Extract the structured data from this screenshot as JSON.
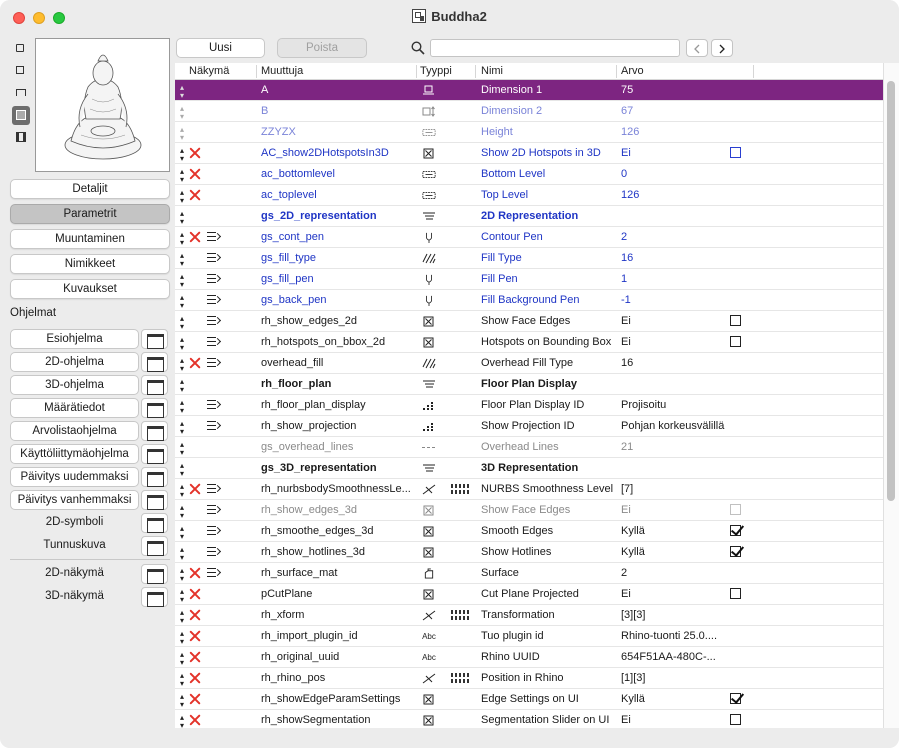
{
  "window": {
    "title": "Buddha2"
  },
  "sidebar": {
    "buttons": [
      "Detaljit",
      "Parametrit",
      "Muuntaminen",
      "Nimikkeet",
      "Kuvaukset"
    ],
    "selected": "Parametrit",
    "section_label": "Ohjelmat",
    "programs": [
      "Esiohjelma",
      "2D-ohjelma",
      "3D-ohjelma",
      "Määrätiedot",
      "Arvolistaohjelma",
      "Käyttöliittymäohjelma",
      "Päivitys uudemmaksi",
      "Päivitys vanhemmaksi"
    ],
    "plain_items": [
      "2D-symboli",
      "Tunnuskuva"
    ],
    "views": [
      "2D-näkymä",
      "3D-näkymä"
    ]
  },
  "toolbar": {
    "new_label": "Uusi",
    "delete_label": "Poista",
    "search_value": ""
  },
  "table": {
    "headers": {
      "view": "Näkymä",
      "variable": "Muuttuja",
      "type": "Tyyppi",
      "name": "Nimi",
      "value": "Arvo"
    },
    "rows": [
      {
        "var": "A",
        "type": "dim-v",
        "name": "Dimension 1",
        "value": "75",
        "sort": "dim",
        "x": false,
        "link": false,
        "check": "",
        "style": "selected"
      },
      {
        "var": "B",
        "type": "dim-h",
        "name": "Dimension 2",
        "value": "67",
        "sort": "dim",
        "x": false,
        "link": false,
        "check": "",
        "style": "lightblue"
      },
      {
        "var": "ZZYZX",
        "type": "dim-box",
        "name": "Height",
        "value": "126",
        "sort": "dim",
        "x": false,
        "link": false,
        "check": "",
        "style": "lightblue"
      },
      {
        "var": "AC_show2DHotspotsIn3D",
        "type": "bool",
        "name": "Show 2D Hotspots in 3D",
        "value": "Ei",
        "sort": "full",
        "x": true,
        "link": false,
        "check": "off-blue",
        "style": "blue"
      },
      {
        "var": "ac_bottomlevel",
        "type": "dim-box",
        "name": "Bottom Level",
        "value": "0",
        "sort": "full",
        "x": true,
        "link": false,
        "check": "",
        "style": "blue"
      },
      {
        "var": "ac_toplevel",
        "type": "dim-box",
        "name": "Top Level",
        "value": "126",
        "sort": "full",
        "x": true,
        "link": false,
        "check": "",
        "style": "blue"
      },
      {
        "var": "gs_2D_representation",
        "type": "title",
        "name": "2D Representation",
        "value": "",
        "sort": "full",
        "x": false,
        "link": false,
        "check": "",
        "style": "blue-bold"
      },
      {
        "var": "gs_cont_pen",
        "type": "pen",
        "name": "Contour Pen",
        "value": "2",
        "sort": "full",
        "x": true,
        "link": true,
        "check": "",
        "style": "blue"
      },
      {
        "var": "gs_fill_type",
        "type": "fill",
        "name": "Fill Type",
        "value": "16",
        "sort": "full",
        "x": false,
        "link": true,
        "check": "",
        "style": "blue"
      },
      {
        "var": "gs_fill_pen",
        "type": "pen",
        "name": "Fill Pen",
        "value": "1",
        "sort": "full",
        "x": false,
        "link": true,
        "check": "",
        "style": "blue"
      },
      {
        "var": "gs_back_pen",
        "type": "pen",
        "name": "Fill Background Pen",
        "value": "-1",
        "sort": "full",
        "x": false,
        "link": true,
        "check": "",
        "style": "blue"
      },
      {
        "var": "rh_show_edges_2d",
        "type": "bool",
        "name": "Show Face Edges",
        "value": "Ei",
        "sort": "full",
        "x": false,
        "link": true,
        "check": "off",
        "style": "normal"
      },
      {
        "var": "rh_hotspots_on_bbox_2d",
        "type": "bool",
        "name": "Hotspots on Bounding Box",
        "value": "Ei",
        "sort": "full",
        "x": false,
        "link": true,
        "check": "off",
        "style": "normal"
      },
      {
        "var": "overhead_fill",
        "type": "fill",
        "name": "Overhead Fill Type",
        "value": "16",
        "sort": "full",
        "x": true,
        "link": true,
        "check": "",
        "style": "normal"
      },
      {
        "var": "rh_floor_plan",
        "type": "title",
        "name": "Floor Plan Display",
        "value": "",
        "sort": "full",
        "x": false,
        "link": false,
        "check": "",
        "style": "bold"
      },
      {
        "var": "rh_floor_plan_display",
        "type": "int",
        "name": "Floor Plan Display ID",
        "value": "Projisoitu",
        "sort": "full",
        "x": false,
        "link": true,
        "check": "",
        "style": "normal"
      },
      {
        "var": "rh_show_projection",
        "type": "int",
        "name": "Show Projection ID",
        "value": "Pohjan korkeusvälillä",
        "sort": "full",
        "x": false,
        "link": true,
        "check": "",
        "style": "normal"
      },
      {
        "var": "gs_overhead_lines",
        "type": "line",
        "name": "Overhead Lines",
        "value": "21",
        "sort": "full",
        "x": false,
        "link": false,
        "check": "",
        "style": "gray"
      },
      {
        "var": "gs_3D_representation",
        "type": "title",
        "name": "3D Representation",
        "value": "",
        "sort": "full",
        "x": false,
        "link": false,
        "check": "",
        "style": "bold"
      },
      {
        "var": "rh_nurbsbodySmoothnessLe...",
        "type": "real",
        "name": "NURBS Smoothness Level",
        "value": "[7]",
        "sort": "full",
        "x": true,
        "link": true,
        "check": "",
        "arr": true,
        "style": "normal"
      },
      {
        "var": "rh_show_edges_3d",
        "type": "bool",
        "name": "Show Face Edges",
        "value": "Ei",
        "sort": "full",
        "x": false,
        "link": true,
        "check": "dis",
        "style": "gray"
      },
      {
        "var": "rh_smoothe_edges_3d",
        "type": "bool",
        "name": "Smooth Edges",
        "value": "Kyllä",
        "sort": "full",
        "x": false,
        "link": true,
        "check": "on",
        "style": "normal"
      },
      {
        "var": "rh_show_hotlines_3d",
        "type": "bool",
        "name": "Show Hotlines",
        "value": "Kyllä",
        "sort": "full",
        "x": false,
        "link": true,
        "check": "on",
        "style": "normal"
      },
      {
        "var": "rh_surface_mat",
        "type": "mat",
        "name": "Surface",
        "value": "2",
        "sort": "full",
        "x": true,
        "link": true,
        "check": "",
        "style": "normal"
      },
      {
        "var": "pCutPlane",
        "type": "bool",
        "name": "Cut Plane Projected",
        "value": "Ei",
        "sort": "full",
        "x": true,
        "link": false,
        "check": "off",
        "style": "normal"
      },
      {
        "var": "rh_xform",
        "type": "real",
        "name": "Transformation",
        "value": "[3][3]",
        "sort": "full",
        "x": true,
        "link": false,
        "check": "",
        "arr": true,
        "style": "normal"
      },
      {
        "var": "rh_import_plugin_id",
        "type": "abc",
        "name": "Tuo plugin id",
        "value": "Rhino-tuonti 25.0....",
        "sort": "full",
        "x": true,
        "link": false,
        "check": "",
        "style": "normal"
      },
      {
        "var": "rh_original_uuid",
        "type": "abc",
        "name": "Rhino UUID",
        "value": "654F51AA-480C-...",
        "sort": "full",
        "x": true,
        "link": false,
        "check": "",
        "style": "normal"
      },
      {
        "var": "rh_rhino_pos",
        "type": "real",
        "name": "Position in Rhino",
        "value": "[1][3]",
        "sort": "full",
        "x": true,
        "link": false,
        "check": "",
        "arr": true,
        "style": "normal"
      },
      {
        "var": "rh_showEdgeParamSettings",
        "type": "bool",
        "name": "Edge Settings on UI",
        "value": "Kyllä",
        "sort": "full",
        "x": true,
        "link": false,
        "check": "on",
        "style": "normal"
      },
      {
        "var": "rh_showSegmentation",
        "type": "bool",
        "name": "Segmentation Slider on UI",
        "value": "Ei",
        "sort": "full",
        "x": true,
        "link": false,
        "check": "off",
        "style": "normal"
      }
    ]
  }
}
